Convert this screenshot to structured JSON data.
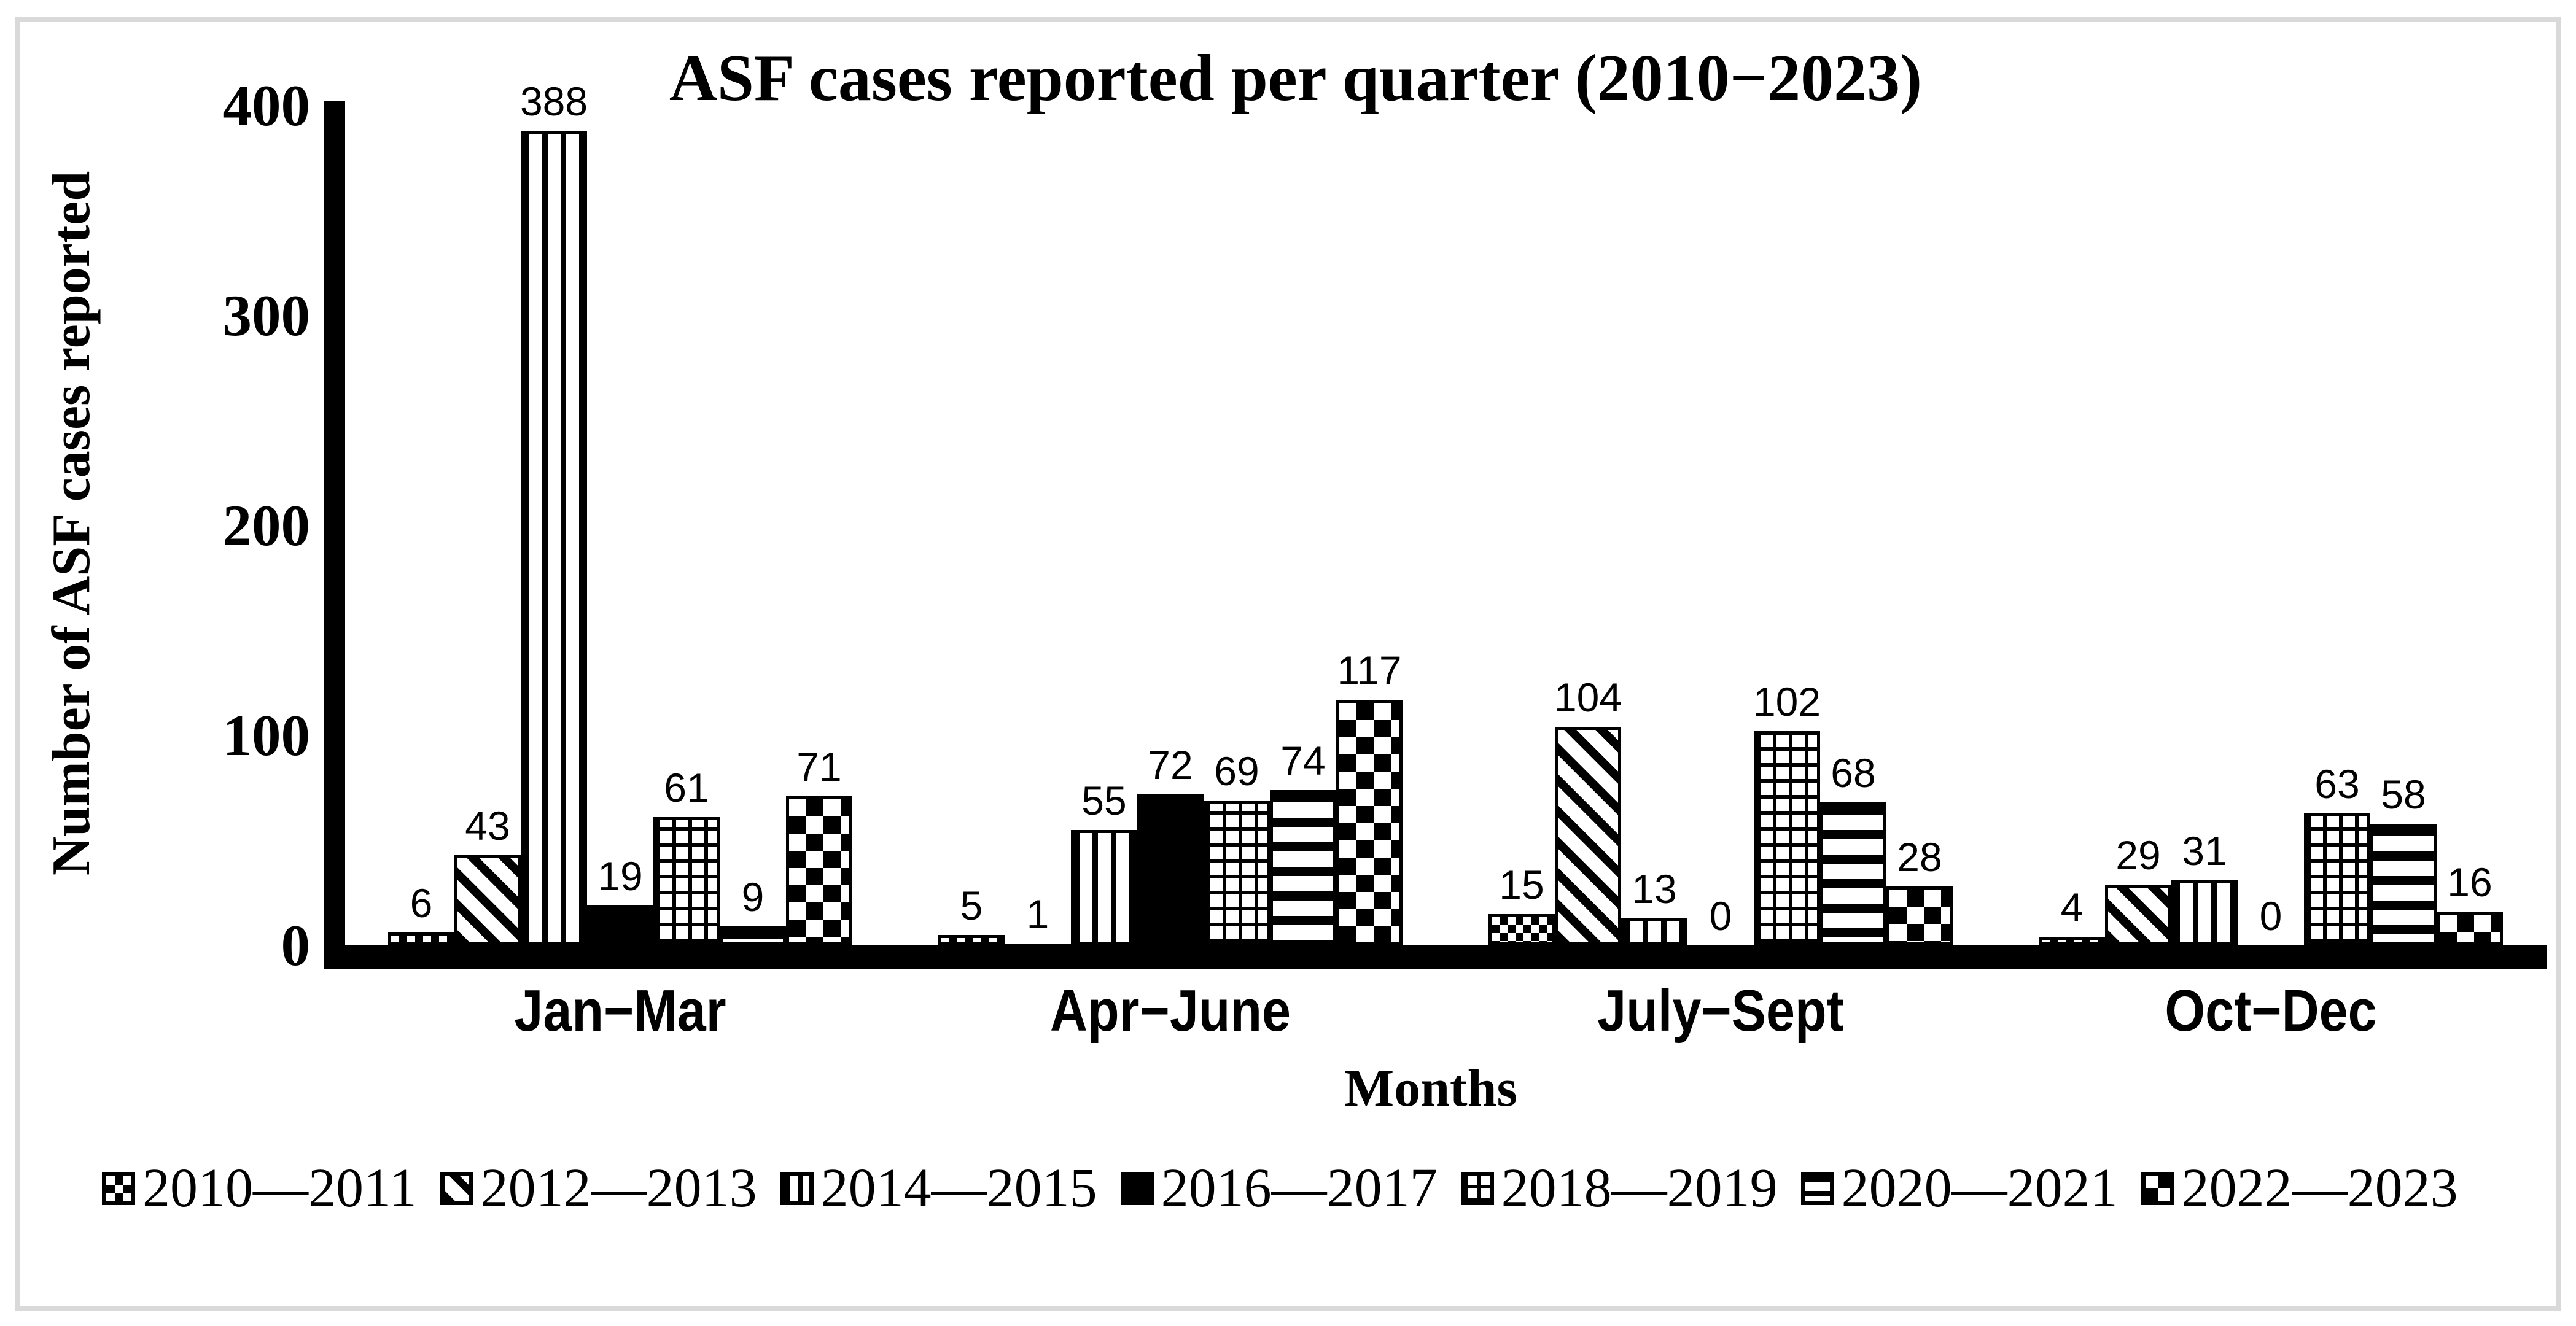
{
  "colors": {
    "ink": "#000000",
    "background": "#ffffff",
    "frame": "#d9d9d9"
  },
  "chart_data": {
    "type": "bar",
    "title": "ASF cases reported per quarter (2010−2023)",
    "xlabel": "Months",
    "ylabel": "Number of ASF cases reported",
    "ylim": [
      0,
      400
    ],
    "yticks": [
      0,
      100,
      200,
      300,
      400
    ],
    "grid": false,
    "legend_position": "bottom",
    "categories": [
      "Jan−Mar",
      "Apr−June",
      "July−Sept",
      "Oct−Dec"
    ],
    "series": [
      {
        "name": "2010—2011",
        "pattern": "check-sm",
        "marker": "small-checkerboard-swatch-icon",
        "values": [
          6,
          5,
          15,
          4
        ]
      },
      {
        "name": "2012—2013",
        "pattern": "diag",
        "marker": "diagonal-stripe-swatch-icon",
        "values": [
          43,
          1,
          104,
          29
        ]
      },
      {
        "name": "2014—2015",
        "pattern": "vert",
        "marker": "vertical-stripe-swatch-icon",
        "values": [
          388,
          55,
          13,
          31
        ]
      },
      {
        "name": "2016—2017",
        "pattern": "solid",
        "marker": "solid-black-swatch-icon",
        "values": [
          19,
          72,
          0,
          0
        ]
      },
      {
        "name": "2018—2019",
        "pattern": "grid",
        "marker": "grid-swatch-icon",
        "values": [
          61,
          69,
          102,
          63
        ]
      },
      {
        "name": "2020—2021",
        "pattern": "horiz",
        "marker": "horizontal-stripe-swatch-icon",
        "values": [
          9,
          74,
          68,
          58
        ]
      },
      {
        "name": "2022—2023",
        "pattern": "check-lg",
        "marker": "large-checkerboard-swatch-icon",
        "values": [
          71,
          117,
          28,
          16
        ]
      }
    ]
  }
}
